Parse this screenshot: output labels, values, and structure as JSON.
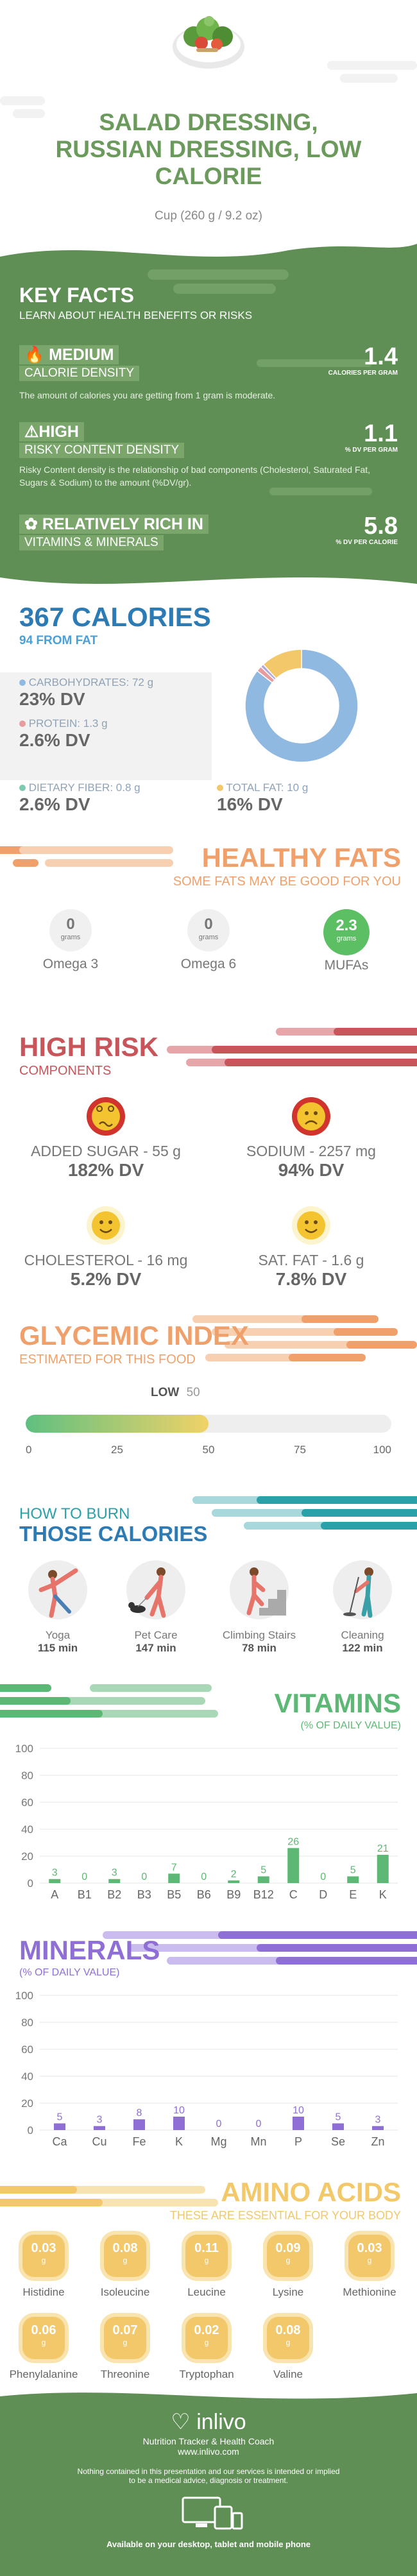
{
  "header": {
    "title_lines": [
      "SALAD DRESSING,",
      "RUSSIAN DRESSING, LOW",
      "CALORIE"
    ],
    "serving": "Cup (260 g / 9.2 oz)"
  },
  "key_facts": {
    "title": "KEY FACTS",
    "subtitle": "LEARN ABOUT HEALTH BENEFITS OR RISKS",
    "items": [
      {
        "level": "MEDIUM",
        "label": "CALORIE DENSITY",
        "desc": "The amount of calories you are getting from 1 gram is moderate.",
        "value": "1.4",
        "unit": "CALORIES PER GRAM"
      },
      {
        "level": "HIGH",
        "label": "RISKY CONTENT DENSITY",
        "desc": "Risky Content density is the relationship of bad components (Cholesterol, Saturated Fat, Sugars & Sodium) to the amount (%DV/gr).",
        "value": "1.1",
        "unit": "% DV PER GRAM"
      },
      {
        "level": "RELATIVELY RICH IN",
        "label": "VITAMINS & MINERALS",
        "desc": "",
        "value": "5.8",
        "unit": "% DV PER CALORIE"
      }
    ]
  },
  "calories": {
    "title": "367 CALORIES",
    "subtitle": "94 FROM FAT",
    "macros": [
      {
        "label": "CARBOHYDRATES: 72 g",
        "dv": "23% DV",
        "color": "#8fb9e0"
      },
      {
        "label": "PROTEIN: 1.3 g",
        "dv": "2.6% DV",
        "color": "#e89ca0"
      },
      {
        "label": "DIETARY FIBER: 0.8 g",
        "dv": "2.6% DV",
        "color": "#7ccbb0"
      },
      {
        "label": "TOTAL FAT: 10 g",
        "dv": "16% DV",
        "color": "#f2c86a"
      }
    ],
    "donut": [
      {
        "name": "carbs",
        "value": 72,
        "color": "#8fb9e0"
      },
      {
        "name": "protein",
        "value": 1.3,
        "color": "#e89ca0"
      },
      {
        "name": "fiber",
        "value": 0.8,
        "color": "#b3a6d9"
      },
      {
        "name": "fat",
        "value": 10,
        "color": "#f2c86a"
      }
    ]
  },
  "healthy_fats": {
    "title": "HEALTHY FATS",
    "subtitle": "SOME FATS MAY BE GOOD FOR YOU",
    "items": [
      {
        "value": "0",
        "unit": "grams",
        "label": "Omega 3",
        "color": "#f0f0f0",
        "text_color": "#777"
      },
      {
        "value": "0",
        "unit": "grams",
        "label": "Omega 6",
        "color": "#f0f0f0",
        "text_color": "#777"
      },
      {
        "value": "2.3",
        "unit": "grams",
        "label": "MUFAs",
        "color": "#5cbf64",
        "text_color": "#fff"
      }
    ]
  },
  "high_risk": {
    "title": "HIGH RISK",
    "subtitle": "COMPONENTS",
    "items": [
      {
        "label": "ADDED SUGAR - 55 g",
        "dv": "182% DV",
        "face": "dizzy"
      },
      {
        "label": "SODIUM - 2257 mg",
        "dv": "94% DV",
        "face": "sad"
      },
      {
        "label": "CHOLESTEROL - 16 mg",
        "dv": "5.2% DV",
        "face": "happy"
      },
      {
        "label": "SAT. FAT - 1.6 g",
        "dv": "7.8% DV",
        "face": "happy"
      }
    ]
  },
  "glycemic": {
    "title": "GLYCEMIC INDEX",
    "subtitle": "ESTIMATED FOR THIS FOOD",
    "level": "LOW",
    "value": 50,
    "ticks": [
      "0",
      "25",
      "50",
      "75",
      "100"
    ]
  },
  "burn": {
    "title_line1": "HOW TO BURN",
    "title_line2": "THOSE CALORIES",
    "items": [
      {
        "label": "Yoga",
        "time": "115 min"
      },
      {
        "label": "Pet Care",
        "time": "147 min"
      },
      {
        "label": "Climbing Stairs",
        "time": "78 min"
      },
      {
        "label": "Cleaning",
        "time": "122 min"
      }
    ]
  },
  "chart_data": [
    {
      "type": "bar",
      "title": "VITAMINS",
      "subtitle": "(% OF DAILY VALUE)",
      "categories": [
        "A",
        "B1",
        "B2",
        "B3",
        "B5",
        "B6",
        "B9",
        "B12",
        "C",
        "D",
        "E",
        "K"
      ],
      "values": [
        3,
        0,
        3,
        0,
        7,
        0,
        2,
        5,
        26,
        0,
        5,
        21
      ],
      "yticks": [
        0,
        20,
        40,
        60,
        80,
        100
      ],
      "ylim": [
        0,
        100
      ],
      "color": "#5cb874"
    },
    {
      "type": "bar",
      "title": "MINERALS",
      "subtitle": "(% OF DAILY VALUE)",
      "categories": [
        "Ca",
        "Cu",
        "Fe",
        "K",
        "Mg",
        "Mn",
        "P",
        "Se",
        "Zn"
      ],
      "values": [
        5,
        3,
        8,
        10,
        0,
        0,
        10,
        5,
        3
      ],
      "yticks": [
        0,
        20,
        40,
        60,
        80,
        100
      ],
      "ylim": [
        0,
        100
      ],
      "color": "#8f6fd6"
    }
  ],
  "amino": {
    "title": "AMINO ACIDS",
    "subtitle": "THESE ARE ESSENTIAL FOR YOUR BODY",
    "unit": "g",
    "items": [
      {
        "value": "0.03",
        "label": "Histidine"
      },
      {
        "value": "0.08",
        "label": "Isoleucine"
      },
      {
        "value": "0.11",
        "label": "Leucine"
      },
      {
        "value": "0.09",
        "label": "Lysine"
      },
      {
        "value": "0.03",
        "label": "Methionine"
      },
      {
        "value": "0.06",
        "label": "Phenylalanine"
      },
      {
        "value": "0.07",
        "label": "Threonine"
      },
      {
        "value": "0.02",
        "label": "Tryptophan"
      },
      {
        "value": "0.08",
        "label": "Valine"
      }
    ]
  },
  "footer": {
    "brand": "inlivo",
    "tagline": "Nutrition Tracker & Health Coach",
    "url": "www.inlivo.com",
    "disclaimer_1": "Nothing contained in this presentation and our services is intended or implied",
    "disclaimer_2": "to be a medical advice, diagnosis or treatment.",
    "devices": "Available on your desktop, tablet and mobile phone"
  },
  "colors": {
    "green": "#5f8f55",
    "green_light": "#7aa66c",
    "orange": "#f0a06a",
    "red": "#c7555a",
    "blue": "#2d7bb5",
    "teal": "#2aa0a8",
    "purple": "#8f6fd6",
    "yellow": "#f2c86a",
    "gray": "#f2f2f2"
  }
}
